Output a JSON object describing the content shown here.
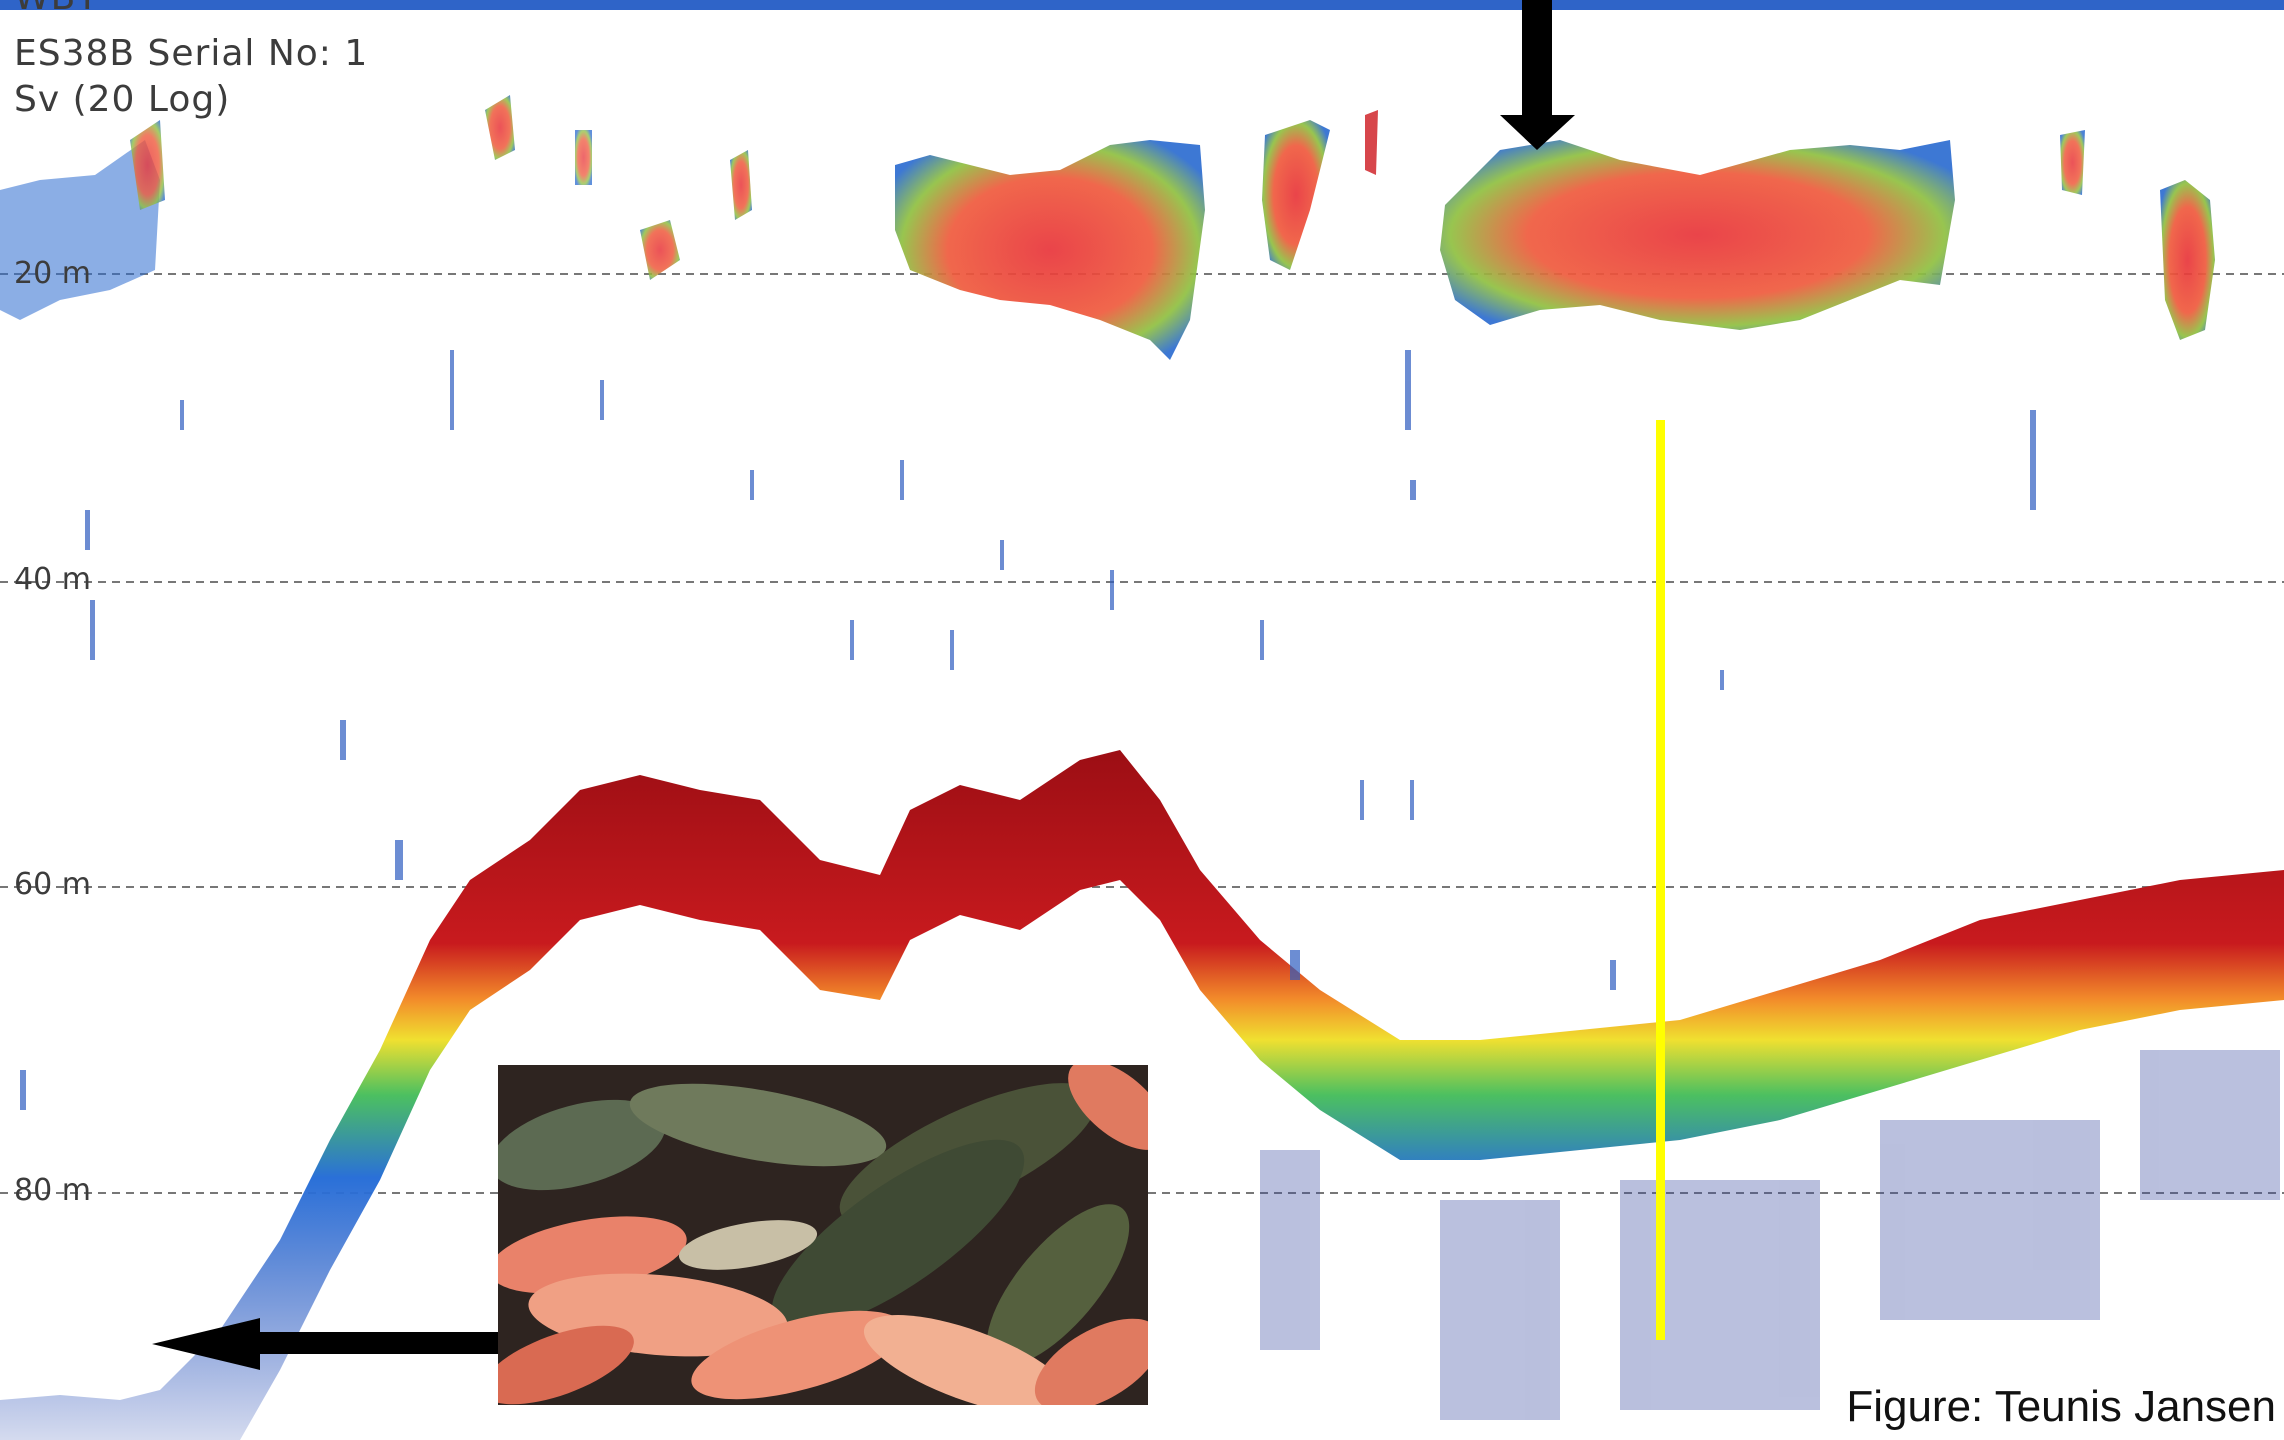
{
  "header": {
    "partial_top": "WBT",
    "transducer": "ES38B Serial No: 1",
    "mode": "Sv (20 Log)"
  },
  "depth_lines": [
    {
      "label": "20 m"
    },
    {
      "label": "40 m"
    },
    {
      "label": "60 m"
    },
    {
      "label": "80 m"
    }
  ],
  "annotations": {
    "arrow_top": "black-down-arrow",
    "arrow_bottom": "black-left-arrow",
    "marker": "yellow-vertical-line",
    "inset": "fish-catch-photo"
  },
  "credit": "Figure: Teunis Jansen",
  "colors": {
    "bar": "#2f64c8",
    "bottom_red": "#b5141c",
    "marker": "#ffff00",
    "grid": "#777777"
  }
}
